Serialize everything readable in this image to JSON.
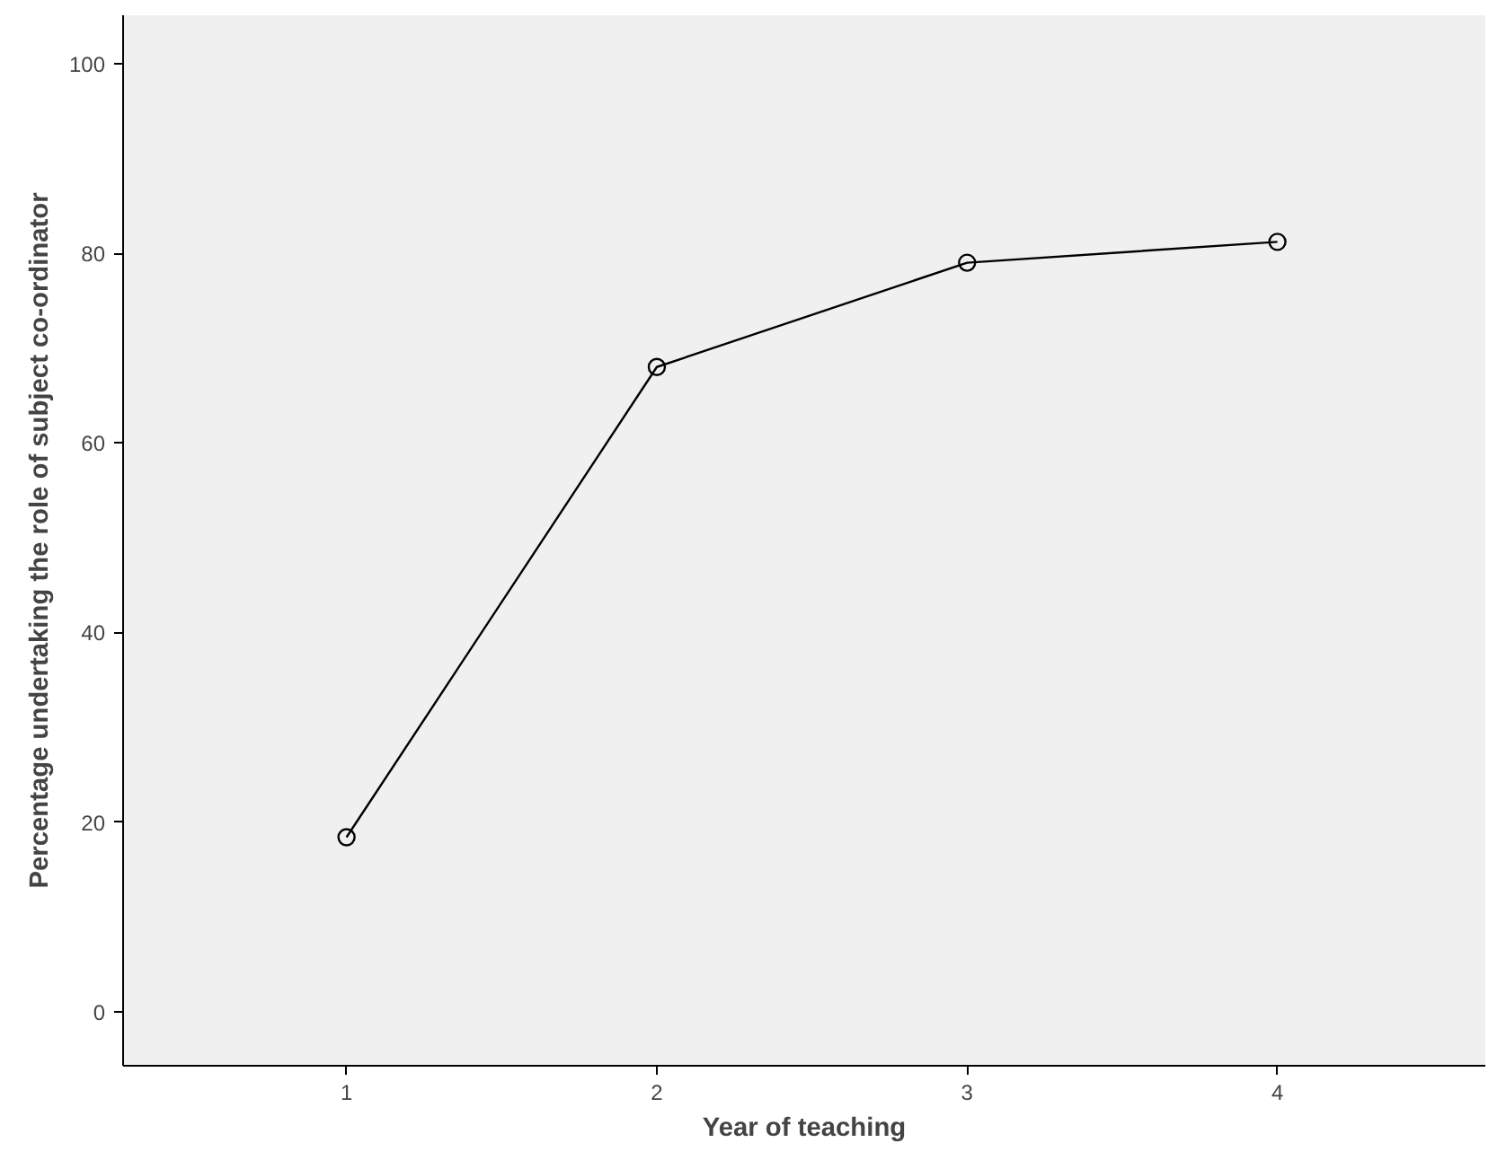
{
  "chart_data": {
    "type": "line",
    "xlabel": "Year of teaching",
    "ylabel": "Percentage undertaking the role of subject co-ordinator",
    "x": [
      1,
      2,
      3,
      4
    ],
    "series": [
      {
        "color": "#000000",
        "values": [
          18.4,
          68,
          79,
          81.2
        ]
      }
    ],
    "xlim": [
      0.28,
      4.67
    ],
    "xticks": [
      1,
      2,
      3,
      4
    ],
    "ylim": [
      -5.7,
      105.1
    ],
    "yticks": [
      0,
      20,
      40,
      60,
      80,
      100
    ],
    "grid": false,
    "marker": "circle",
    "line_style": "solid"
  }
}
